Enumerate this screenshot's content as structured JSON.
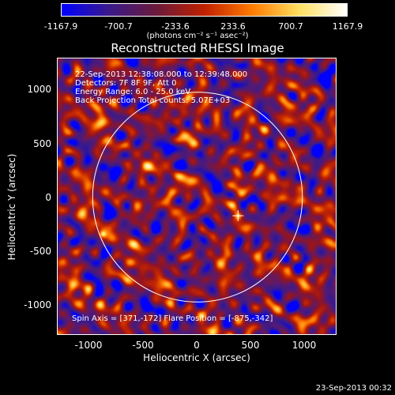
{
  "colorbar": {
    "ticks": [
      "-1167.9",
      "-700.7",
      "-233.6",
      "233.6",
      "700.7",
      "1167.9"
    ],
    "unit_label": "(photons cm⁻² s⁻¹ asec⁻²)",
    "colors": [
      "#0000ff",
      "#3a1a8a",
      "#6b1a3a",
      "#c02000",
      "#ff7a00",
      "#ffe060",
      "#ffffff"
    ]
  },
  "plot": {
    "title": "Reconstructed RHESSI Image",
    "info_lines": [
      "22-Sep-2013 12:38:08.000 to 12:39:48.000",
      "Detectors: 7F 8F 9F, Att 0",
      "Energy Range: 6.0 - 25.0 keV",
      "Back Projection     Total counts: 5.07E+03"
    ],
    "bottom_text": "Spin Axis = [371,-172]    Flare Position = [-875,-342]",
    "y_ticks": [
      "1000",
      "500",
      "0",
      "-500",
      "-1000"
    ],
    "x_ticks": [
      "-1000",
      "-500",
      "0",
      "500",
      "1000"
    ],
    "x_label": "Heliocentric X (arcsec)",
    "y_label": "Heliocentric Y (arcsec)",
    "x_range": [
      -1280,
      1280
    ],
    "y_range": [
      -1280,
      1280
    ],
    "limb_radius": 960,
    "cross_position": [
      371,
      -172
    ],
    "flare_position": [
      -875,
      -342
    ]
  },
  "footer": {
    "date": "23-Sep-2013 00:32"
  }
}
